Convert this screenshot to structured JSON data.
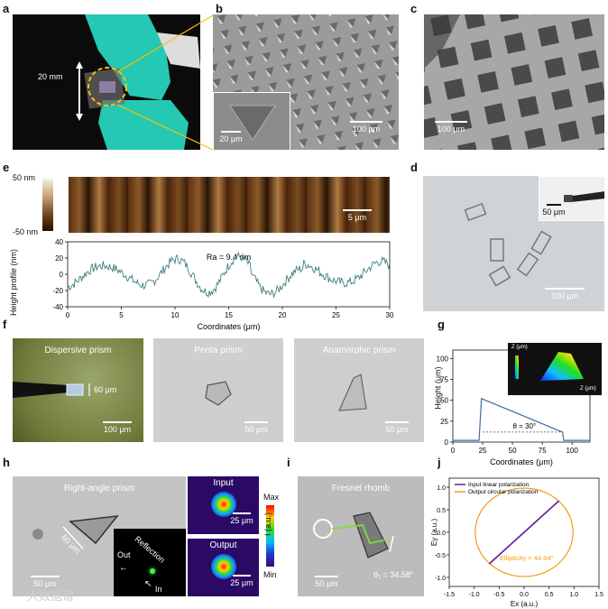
{
  "panel_labels": [
    "a",
    "b",
    "c",
    "d",
    "e",
    "f",
    "g",
    "h",
    "i",
    "j"
  ],
  "a": {
    "size_label": "20 mm"
  },
  "b": {
    "scale_main": "100 μm",
    "scale_inset": "20 μm"
  },
  "c": {
    "scale": "100 μm"
  },
  "d": {
    "scale_main": "100 μm",
    "scale_inset": "50 μm"
  },
  "e": {
    "colorbar_max": "50 nm",
    "colorbar_min": "-50 nm",
    "afm_scale": "5 μm",
    "ra_label": "Ra = 9.4 nm",
    "ylabel": "Height profile (nm)",
    "xlabel": "Coordinates (μm)",
    "yticks": [
      "40",
      "20",
      "0",
      "-20",
      "-40"
    ],
    "xticks": [
      "0",
      "5",
      "10",
      "15",
      "20",
      "25",
      "30"
    ]
  },
  "f": {
    "p1": {
      "title": "Dispersive prism",
      "dim": "60 μm",
      "scale": "100 μm"
    },
    "p2": {
      "title": "Penta prism",
      "scale": "50 μm"
    },
    "p3": {
      "title": "Anamorphic prism",
      "scale": "50 μm"
    }
  },
  "g": {
    "ylabel": "Height (μm)",
    "xlabel": "Coordinates (μm)",
    "angle_label": "θ = 30°",
    "yticks": [
      "100",
      "75",
      "50",
      "25",
      "0"
    ],
    "xticks": [
      "0",
      "25",
      "50",
      "75",
      "100"
    ],
    "inset_zlabel": "Z (μm)",
    "inset_xlabel": "Z (μm)"
  },
  "h": {
    "title": "Right-angle prism",
    "dim": "60 μm",
    "scale": "50 μm",
    "reflection": "Reflection",
    "out": "Out",
    "in": "In",
    "input_title": "Input",
    "output_title": "Output",
    "beam_scale_1": "25 μm",
    "beam_scale_2": "25 μm",
    "cbar_max": "Max",
    "cbar_min": "Min",
    "cbar_label": "I (a.u.)"
  },
  "i": {
    "title": "Fresnel rhomb",
    "scale": "50 μm",
    "angle": "θ₁ = 34.58°"
  },
  "j": {
    "legend_1": "Input linear polarization",
    "legend_2": "Output circular polarization",
    "ellipticity": "Ellipticity = 44.64°",
    "ylabel": "Ey (a.u.)",
    "xlabel": "Ex (a.u.)",
    "yticks": [
      "1.0",
      "0.5",
      "0.0",
      "-0.5",
      "-1.0"
    ],
    "xticks": [
      "-1.5",
      "-1.0",
      "-0.5",
      "0.0",
      "0.5",
      "1.0",
      "1.5"
    ]
  },
  "watermark": "大数据谱",
  "colors": {
    "profile": "#3f7f7f",
    "afm_dark": "#3a1d08",
    "linear": "#6a1b9a",
    "circular": "#f39c12",
    "glove": "#25c8b2",
    "height_line": "#3d6ea8"
  }
}
